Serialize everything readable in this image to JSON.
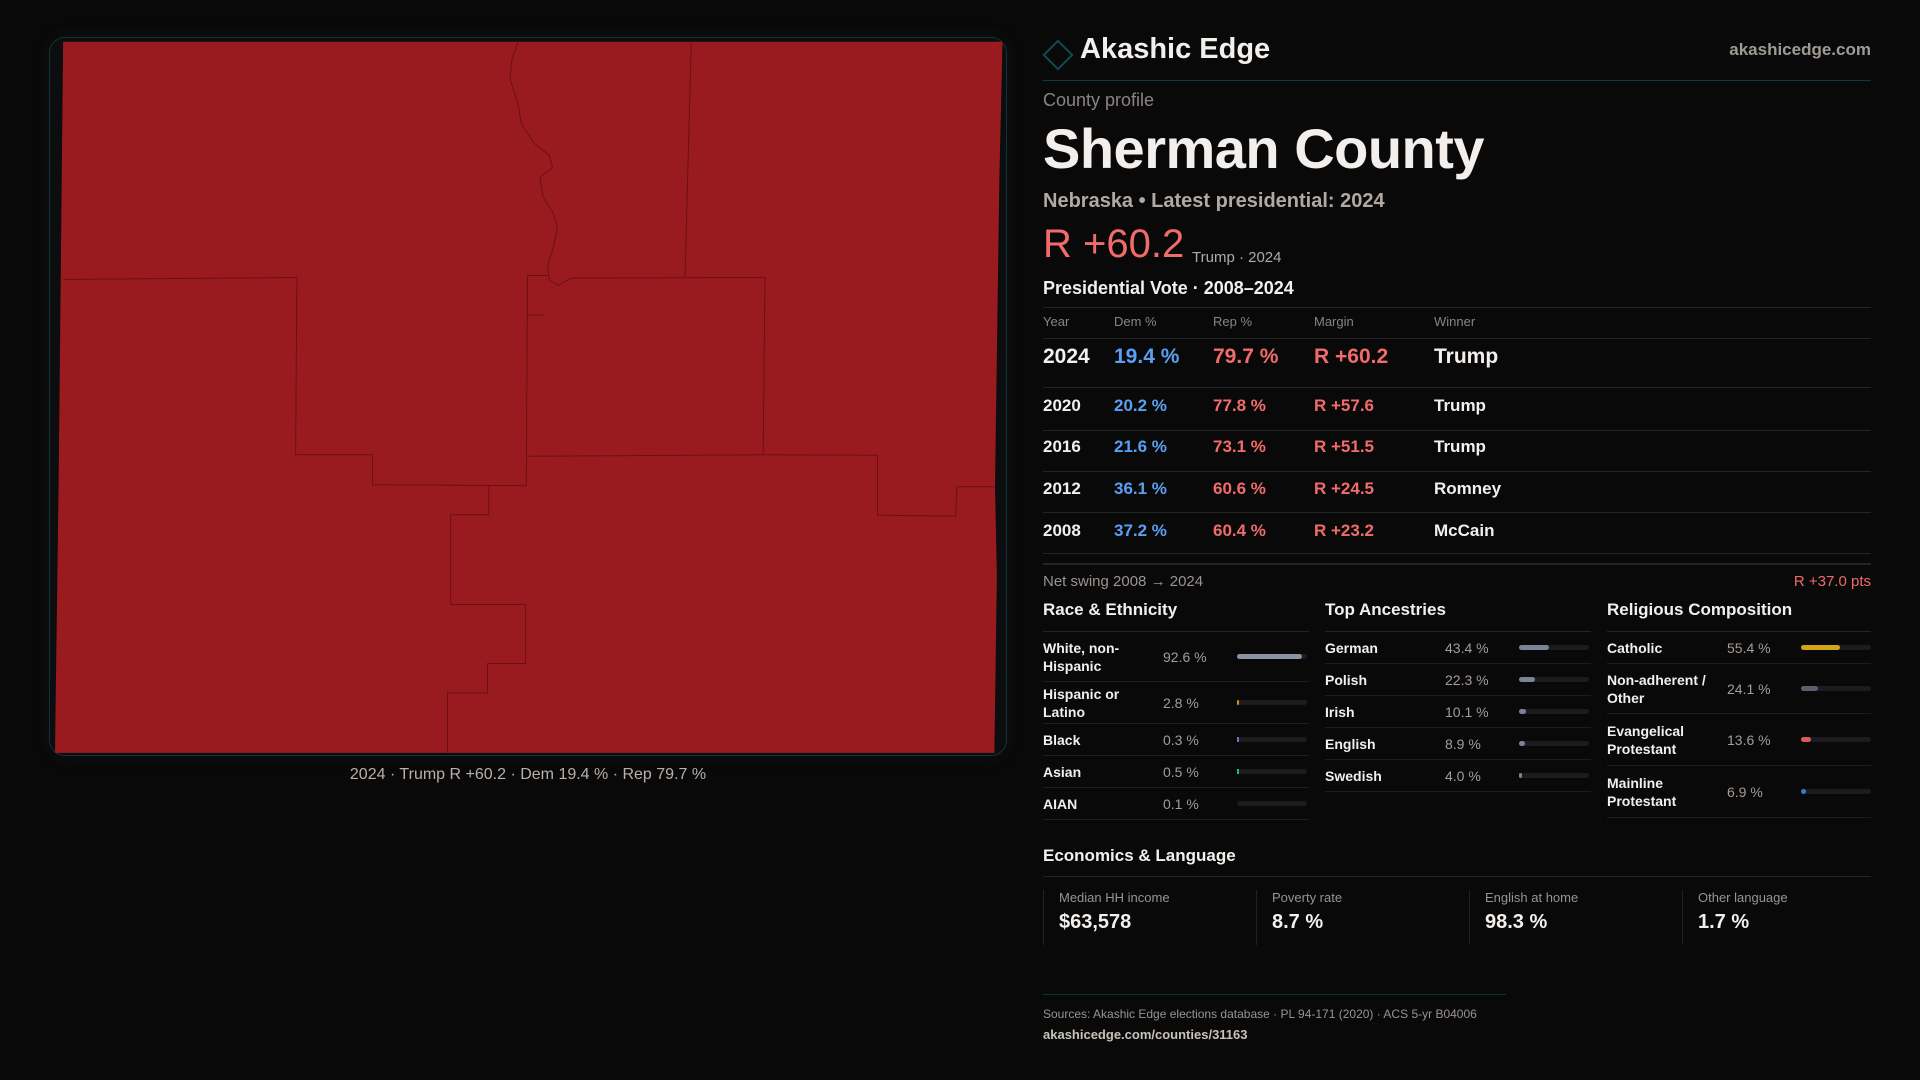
{
  "brand": {
    "name": "Akashic Edge",
    "url": "akashicedge.com",
    "icon": "diamond-logo-icon"
  },
  "map": {
    "caption": "2024 · Trump R +60.2 · Dem 19.4 % · Rep 79.7 %",
    "fill_color": "#9a1b1f"
  },
  "profile": {
    "kicker": "County profile",
    "title": "Sherman County",
    "subtitle": "Nebraska • Latest presidential: 2024",
    "margin": "R +60.2",
    "margin_note": "Trump · 2024"
  },
  "vote": {
    "title": "Presidential Vote · 2008–2024",
    "headers": [
      "Year",
      "Dem %",
      "Rep %",
      "Margin",
      "Winner"
    ],
    "rows": [
      {
        "year": "2024",
        "dem": "19.4 %",
        "rep": "79.7 %",
        "margin": "R +60.2",
        "winner": "Trump"
      },
      {
        "year": "2020",
        "dem": "20.2 %",
        "rep": "77.8 %",
        "margin": "R +57.6",
        "winner": "Trump"
      },
      {
        "year": "2016",
        "dem": "21.6 %",
        "rep": "73.1 %",
        "margin": "R +51.5",
        "winner": "Trump"
      },
      {
        "year": "2012",
        "dem": "36.1 %",
        "rep": "60.6 %",
        "margin": "R +24.5",
        "winner": "Romney"
      },
      {
        "year": "2008",
        "dem": "37.2 %",
        "rep": "60.4 %",
        "margin": "R +23.2",
        "winner": "McCain"
      }
    ],
    "swing_label": "Net swing 2008 → 2024",
    "swing_value": "R +37.0 pts"
  },
  "race": {
    "title": "Race & Ethnicity",
    "items": [
      {
        "label": "White, non-Hispanic",
        "value": "92.6 %",
        "pct": 92.6,
        "color": "#8a93a3"
      },
      {
        "label": "Hispanic or Latino",
        "value": "2.8 %",
        "pct": 2.8,
        "color": "#d4901a"
      },
      {
        "label": "Black",
        "value": "0.3 %",
        "pct": 0.3,
        "color": "#7a6ad0"
      },
      {
        "label": "Asian",
        "value": "0.5 %",
        "pct": 0.5,
        "color": "#20b28a"
      },
      {
        "label": "AIAN",
        "value": "0.1 %",
        "pct": 0.1,
        "color": "#8a93a3"
      }
    ]
  },
  "ancestry": {
    "title": "Top Ancestries",
    "items": [
      {
        "label": "German",
        "value": "43.4 %",
        "pct": 43.4,
        "color": "#7a8494"
      },
      {
        "label": "Polish",
        "value": "22.3 %",
        "pct": 22.3,
        "color": "#7a8494"
      },
      {
        "label": "Irish",
        "value": "10.1 %",
        "pct": 10.1,
        "color": "#7a8494"
      },
      {
        "label": "English",
        "value": "8.9 %",
        "pct": 8.9,
        "color": "#7a8494"
      },
      {
        "label": "Swedish",
        "value": "4.0 %",
        "pct": 4.0,
        "color": "#7a8494"
      }
    ]
  },
  "religion": {
    "title": "Religious Composition",
    "items": [
      {
        "label": "Catholic",
        "value": "55.4 %",
        "pct": 55.4,
        "color": "#d4a418"
      },
      {
        "label": "Non-adherent / Other",
        "value": "24.1 %",
        "pct": 24.1,
        "color": "#5a6070"
      },
      {
        "label": "Evangelical Protestant",
        "value": "13.6 %",
        "pct": 13.6,
        "color": "#d95a5a"
      },
      {
        "label": "Mainline Protestant",
        "value": "6.9 %",
        "pct": 6.9,
        "color": "#3a78d8"
      }
    ]
  },
  "economics": {
    "title": "Economics & Language",
    "stats": [
      {
        "label": "Median HH income",
        "value": "$63,578"
      },
      {
        "label": "Poverty rate",
        "value": "8.7 %"
      },
      {
        "label": "English at home",
        "value": "98.3 %"
      },
      {
        "label": "Other language",
        "value": "1.7 %"
      }
    ]
  },
  "footer": {
    "sources": "Sources: Akashic Edge elections database · PL 94-171 (2020) · ACS 5-yr B04006",
    "url": "akashicedge.com/counties/31163"
  }
}
